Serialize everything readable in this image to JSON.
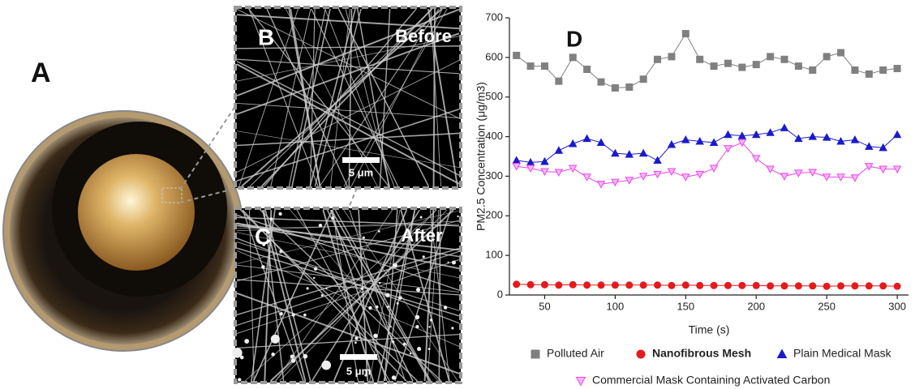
{
  "panels": [
    {
      "label": "A"
    },
    {
      "label": "B",
      "caption": "Before",
      "scale": "5 μm"
    },
    {
      "label": "C",
      "caption": "After",
      "scale": "5 μm"
    }
  ],
  "chart_data": {
    "type": "line",
    "panel_label": "D",
    "x_label": "Time (s)",
    "y_label": "PM2.5 Concentration (μg/m3)",
    "x": [
      30,
      40,
      50,
      60,
      70,
      80,
      90,
      100,
      110,
      120,
      130,
      140,
      150,
      160,
      170,
      180,
      190,
      200,
      210,
      220,
      230,
      240,
      250,
      260,
      270,
      280,
      290,
      300
    ],
    "series": [
      {
        "name": "Polluted Air",
        "color": "#808080",
        "marker": "square",
        "values": [
          605,
          578,
          578,
          540,
          600,
          570,
          538,
          523,
          525,
          545,
          595,
          602,
          660,
          595,
          578,
          585,
          575,
          582,
          602,
          595,
          578,
          568,
          602,
          612,
          568,
          558,
          568,
          572
        ]
      },
      {
        "name": "Nanofibrous Mesh",
        "color": "#e41a1c",
        "marker": "circle",
        "values": [
          27,
          26,
          26,
          25,
          26,
          25,
          25,
          25,
          25,
          25,
          25,
          24,
          25,
          24,
          24,
          24,
          24,
          24,
          23,
          23,
          23,
          23,
          22,
          23,
          23,
          23,
          23,
          22
        ]
      },
      {
        "name": "Plain Medical Mask",
        "color": "#1a1acc",
        "marker": "triangle",
        "values": [
          340,
          335,
          337,
          365,
          382,
          395,
          385,
          358,
          355,
          358,
          340,
          380,
          392,
          388,
          385,
          405,
          402,
          405,
          410,
          422,
          395,
          400,
          398,
          388,
          392,
          375,
          372,
          405
        ]
      },
      {
        "name": "Commercial Mask Containing Activated Carbon",
        "color": "#ee44ee",
        "marker": "triangle-down",
        "values": [
          325,
          320,
          312,
          310,
          320,
          298,
          280,
          285,
          290,
          300,
          305,
          312,
          298,
          305,
          320,
          370,
          385,
          345,
          318,
          300,
          308,
          310,
          298,
          298,
          296,
          325,
          318,
          318
        ]
      }
    ],
    "xlim": [
      25,
      308
    ],
    "ylim": [
      0,
      700
    ],
    "xticks": [
      50,
      100,
      150,
      200,
      250,
      300
    ],
    "yticks": [
      0,
      100,
      200,
      300,
      400,
      500,
      600,
      700
    ]
  }
}
